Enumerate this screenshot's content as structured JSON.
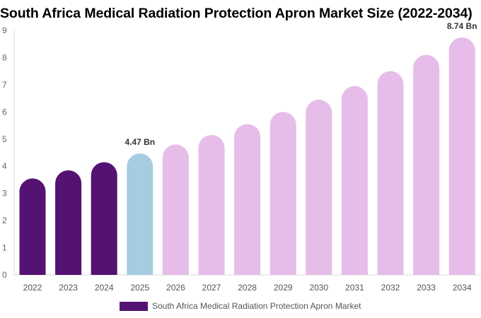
{
  "chart_data": {
    "type": "bar",
    "title": "South Africa Medical Radiation Protection Apron Market Size (2022-2034)",
    "categories": [
      "2022",
      "2023",
      "2024",
      "2025",
      "2026",
      "2027",
      "2028",
      "2029",
      "2030",
      "2031",
      "2032",
      "2033",
      "2034"
    ],
    "series": [
      {
        "name": "South Africa Medical Radiation Protection Apron Market",
        "values": [
          3.55,
          3.85,
          4.15,
          4.47,
          4.8,
          5.15,
          5.55,
          6.0,
          6.45,
          6.95,
          7.5,
          8.1,
          8.74
        ]
      }
    ],
    "bar_colors": {
      "historical": "#541272",
      "base_year": "#a6ccdf",
      "forecast": "#e6bde8"
    },
    "bar_groups": [
      "historical",
      "historical",
      "historical",
      "base_year",
      "forecast",
      "forecast",
      "forecast",
      "forecast",
      "forecast",
      "forecast",
      "forecast",
      "forecast",
      "forecast"
    ],
    "data_labels": [
      {
        "category": "2025",
        "text": "4.47 Bn"
      },
      {
        "category": "2034",
        "text": "8.74 Bn"
      }
    ],
    "yticks": [
      "0",
      "1",
      "2",
      "3",
      "4",
      "5",
      "6",
      "7",
      "8",
      "9"
    ],
    "ylim": [
      0,
      9
    ],
    "xlabel": "",
    "ylabel": "",
    "grid": false,
    "legend_position": "bottom-left",
    "legend_color": "#541272"
  }
}
